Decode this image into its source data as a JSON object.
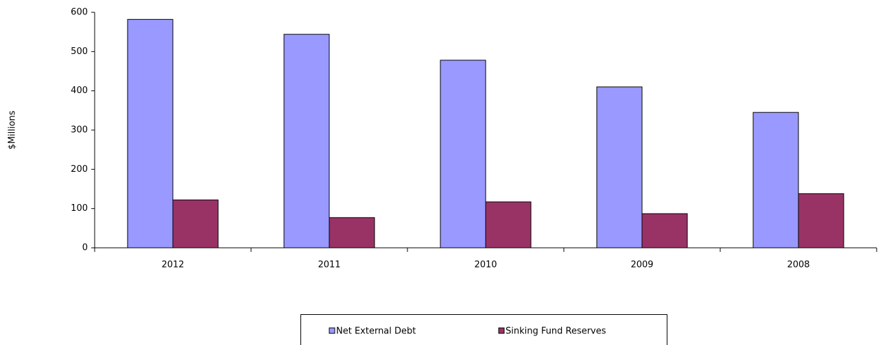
{
  "chart_data": {
    "type": "bar",
    "y_label": "$Millions",
    "categories": [
      "2012",
      "2011",
      "2010",
      "2009",
      "2008"
    ],
    "series": [
      {
        "name": "Net External Debt",
        "color": "#9999ff",
        "values": [
          582,
          544,
          478,
          410,
          345
        ]
      },
      {
        "name": "Sinking Fund Reserves",
        "color": "#993366",
        "values": [
          122,
          77,
          117,
          87,
          138
        ]
      }
    ],
    "ylim": [
      0,
      600
    ],
    "yticks": [
      0,
      100,
      200,
      300,
      400,
      500,
      600
    ],
    "grid": false,
    "legend": "bottom"
  }
}
